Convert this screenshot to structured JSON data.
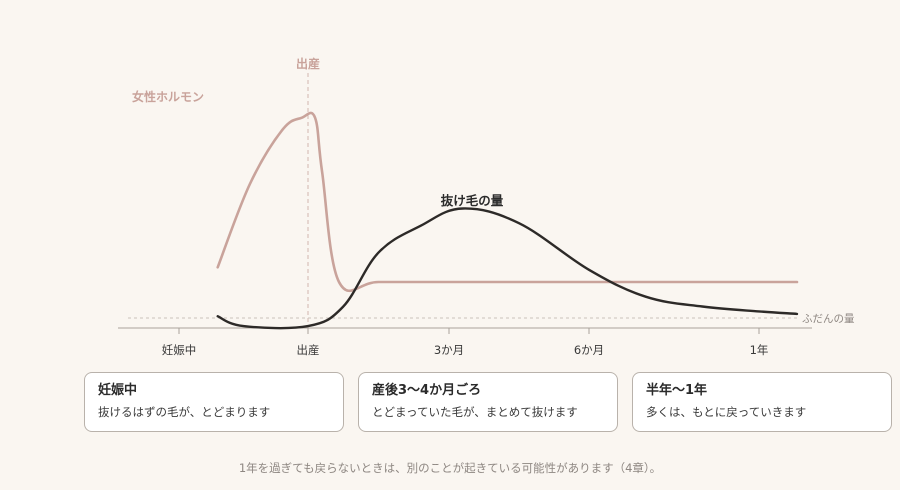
{
  "colors": {
    "background": "#faf6f1",
    "hormone": "#c9a39b",
    "hair_loss": "#2d2a28",
    "axis": "#a9a29c",
    "label_muted": "#8e8782"
  },
  "chart_data": {
    "type": "line",
    "x_ticks": [
      "妊娠中",
      "出産",
      "3か月",
      "6か月",
      "1年"
    ],
    "birth_marker": "出産",
    "baseline_label": "ふだんの量",
    "series": [
      {
        "name": "女性ホルモン",
        "points": [
          [
            -0.7,
            0.06
          ],
          [
            -0.45,
            0.4
          ],
          [
            -0.2,
            0.62
          ],
          [
            -0.05,
            0.67
          ],
          [
            0.05,
            0.67
          ],
          [
            0.1,
            0.45
          ],
          [
            0.22,
            0.0
          ],
          [
            0.5,
            0.0
          ],
          [
            1.0,
            0.0
          ],
          [
            2.0,
            0.0
          ],
          [
            3.0,
            0.0
          ],
          [
            4.0,
            0.0
          ]
        ]
      },
      {
        "name": "抜け毛の量",
        "points": [
          [
            -0.7,
            -0.14
          ],
          [
            -0.5,
            -0.18
          ],
          [
            0.0,
            -0.18
          ],
          [
            0.25,
            -0.1
          ],
          [
            0.5,
            0.12
          ],
          [
            0.8,
            0.23
          ],
          [
            1.1,
            0.3
          ],
          [
            1.5,
            0.24
          ],
          [
            2.0,
            0.05
          ],
          [
            2.5,
            -0.06
          ],
          [
            3.0,
            -0.1
          ],
          [
            3.5,
            -0.12
          ],
          [
            4.0,
            -0.13
          ]
        ]
      }
    ]
  },
  "cards": [
    {
      "title": "妊娠中",
      "desc": "抜けるはずの毛が、とどまります"
    },
    {
      "title": "産後3〜4か月ごろ",
      "desc": "とどまっていた毛が、まとめて抜けます"
    },
    {
      "title": "半年〜1年",
      "desc": "多くは、もとに戻っていきます"
    }
  ],
  "footnote": "1年を過ぎても戻らないときは、別のことが起きている可能性があります（4章）。"
}
